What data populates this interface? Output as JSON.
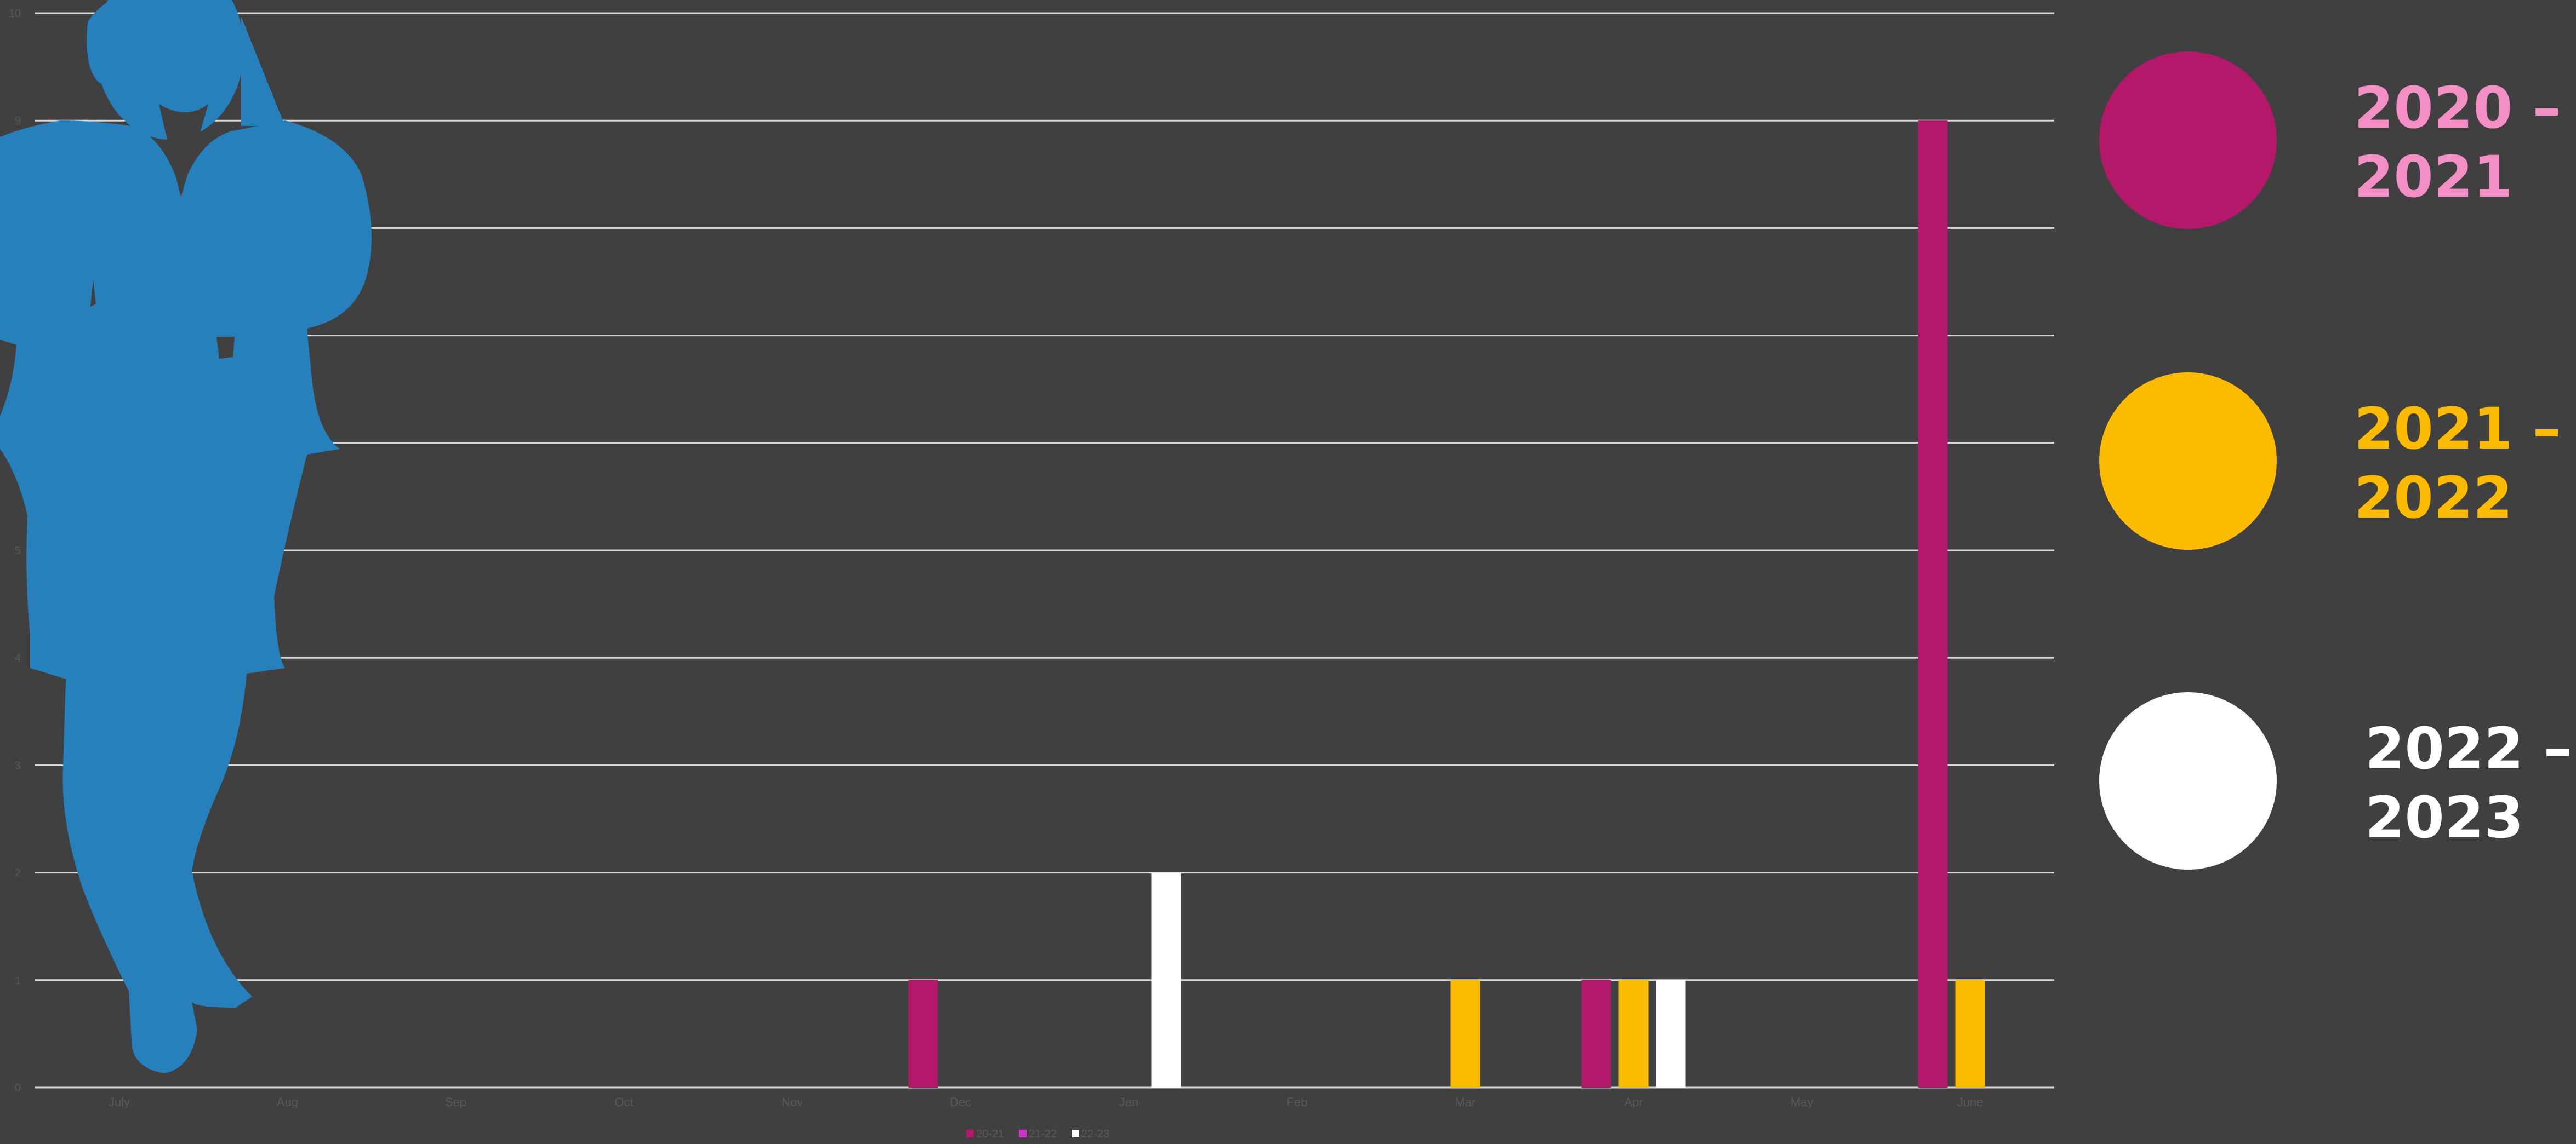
{
  "chart_data": {
    "type": "bar",
    "categories": [
      "July",
      "Aug",
      "Sep",
      "Oct",
      "Nov",
      "Dec",
      "Jan",
      "Feb",
      "Mar",
      "Apr",
      "May",
      "June"
    ],
    "ylim": [
      0,
      10
    ],
    "yticks": [
      "0",
      "1",
      "2",
      "3",
      "4",
      "5",
      "6",
      "7",
      "8",
      "9",
      "10"
    ],
    "grid": true,
    "series": [
      {
        "name": "20-21",
        "color": "#b4186b",
        "values": [
          0,
          0,
          0,
          0,
          0,
          1,
          0,
          0,
          0,
          1,
          0,
          9
        ]
      },
      {
        "name": "21-22",
        "color": "#fdbb00",
        "values": [
          0,
          0,
          0,
          0,
          0,
          0,
          0,
          0,
          1,
          1,
          0,
          1
        ]
      },
      {
        "name": "22-23",
        "color": "#ffffff",
        "values": [
          0,
          0,
          0,
          0,
          0,
          0,
          2,
          0,
          0,
          1,
          0,
          0
        ]
      }
    ],
    "bottom_legend_colors": [
      "#b4186b",
      "#cc33cc",
      "#ffffff"
    ]
  },
  "legend": [
    {
      "label": "2020 –\n2021",
      "color": "#b4186b",
      "text_color": "#f48fc6"
    },
    {
      "label": "2021 –\n2022",
      "color": "#fdbb00",
      "text_color": "#fdbb00"
    },
    {
      "label": "2022 –\n2023",
      "color": "#ffffff",
      "text_color": "#ffffff"
    }
  ],
  "decoration": {
    "icon": "businesswoman-silhouette-icon",
    "color": "#2580bb"
  }
}
